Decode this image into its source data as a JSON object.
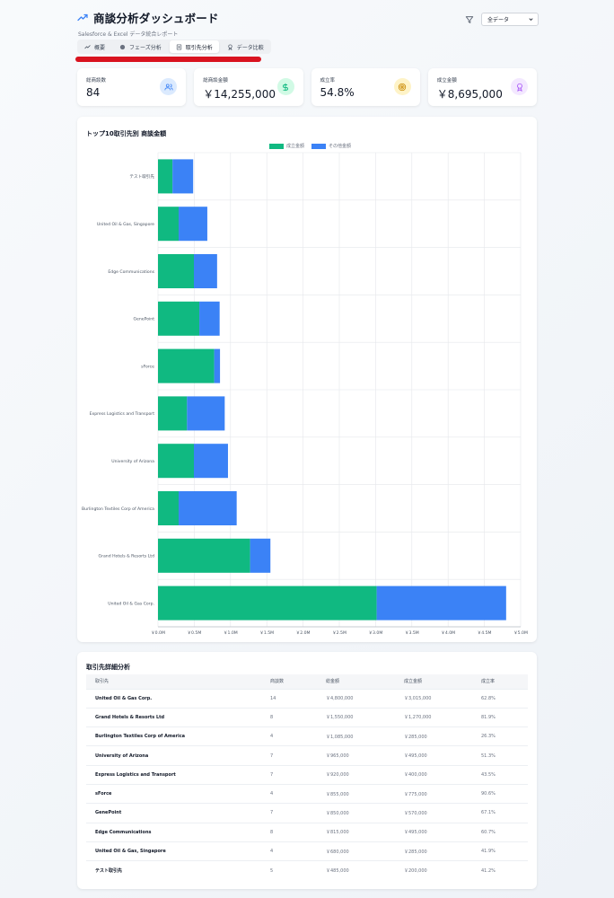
{
  "header": {
    "title": "商談分析ダッシュボード",
    "subtitle": "Salesforce & Excel データ統合レポート",
    "filter_value": "全データ"
  },
  "tabs": [
    {
      "label": "概要",
      "icon": "trend-icon"
    },
    {
      "label": "フェーズ分析",
      "icon": "pie-icon"
    },
    {
      "label": "取引先分析",
      "icon": "building-icon"
    },
    {
      "label": "データ比較",
      "icon": "award-icon"
    }
  ],
  "active_tab": 2,
  "cards": [
    {
      "label": "総商談数",
      "value": "84",
      "icon": "users-icon",
      "color": "#3b82f6",
      "bg": "#dbeafe"
    },
    {
      "label": "総商談金額",
      "value": "￥14,255,000",
      "icon": "dollar-icon",
      "color": "#10b981",
      "bg": "#d1fae5"
    },
    {
      "label": "成立率",
      "value": "54.8%",
      "icon": "target-icon",
      "color": "#ca8a04",
      "bg": "#fef3c7"
    },
    {
      "label": "成立金額",
      "value": "￥8,695,000",
      "icon": "award-icon",
      "color": "#a855f7",
      "bg": "#f3e8ff"
    }
  ],
  "colors": {
    "won": "#10b981",
    "other": "#3b82f6"
  },
  "chart_data": {
    "type": "bar",
    "orientation": "horizontal",
    "stacked": true,
    "title": "トップ10取引先別 商談金額",
    "categories": [
      "テスト取引先",
      "United Oil & Gas, Singapore",
      "Edge Communications",
      "GenePoint",
      "sForce",
      "Express Logistics and Transport",
      "University of Arizona",
      "Burlington Textiles Corp of America",
      "Grand Hotels & Resorts Ltd",
      "United Oil & Gas Corp."
    ],
    "series": [
      {
        "name": "成立金額",
        "values": [
          200000,
          285000,
          495000,
          570000,
          775000,
          400000,
          495000,
          285000,
          1270000,
          3015000
        ]
      },
      {
        "name": "その他金額",
        "values": [
          285000,
          395000,
          320000,
          280000,
          80000,
          520000,
          470000,
          800000,
          280000,
          1785000
        ]
      }
    ],
    "xlim": [
      0,
      5000000
    ],
    "xticks": [
      "￥0.0M",
      "￥0.5M",
      "￥1.0M",
      "￥1.5M",
      "￥2.0M",
      "￥2.5M",
      "￥3.0M",
      "￥3.5M",
      "￥4.0M",
      "￥4.5M",
      "￥5.0M"
    ],
    "grid": true,
    "legend_position": "top"
  },
  "table": {
    "title": "取引先詳細分析",
    "headers": [
      "取引先",
      "商談数",
      "総金額",
      "成立金額",
      "成立率"
    ],
    "rows": [
      [
        "United Oil & Gas Corp.",
        "14",
        "￥4,800,000",
        "￥3,015,000",
        "62.8%"
      ],
      [
        "Grand Hotels & Resorts Ltd",
        "8",
        "￥1,550,000",
        "￥1,270,000",
        "81.9%"
      ],
      [
        "Burlington Textiles Corp of America",
        "4",
        "￥1,085,000",
        "￥285,000",
        "26.3%"
      ],
      [
        "University of Arizona",
        "7",
        "￥965,000",
        "￥495,000",
        "51.3%"
      ],
      [
        "Express Logistics and Transport",
        "7",
        "￥920,000",
        "￥400,000",
        "43.5%"
      ],
      [
        "sForce",
        "4",
        "￥855,000",
        "￥775,000",
        "90.6%"
      ],
      [
        "GenePoint",
        "7",
        "￥850,000",
        "￥570,000",
        "67.1%"
      ],
      [
        "Edge Communications",
        "8",
        "￥815,000",
        "￥495,000",
        "60.7%"
      ],
      [
        "United Oil & Gas, Singapore",
        "4",
        "￥680,000",
        "￥285,000",
        "41.9%"
      ],
      [
        "テスト取引先",
        "5",
        "￥485,000",
        "￥200,000",
        "41.2%"
      ]
    ]
  }
}
